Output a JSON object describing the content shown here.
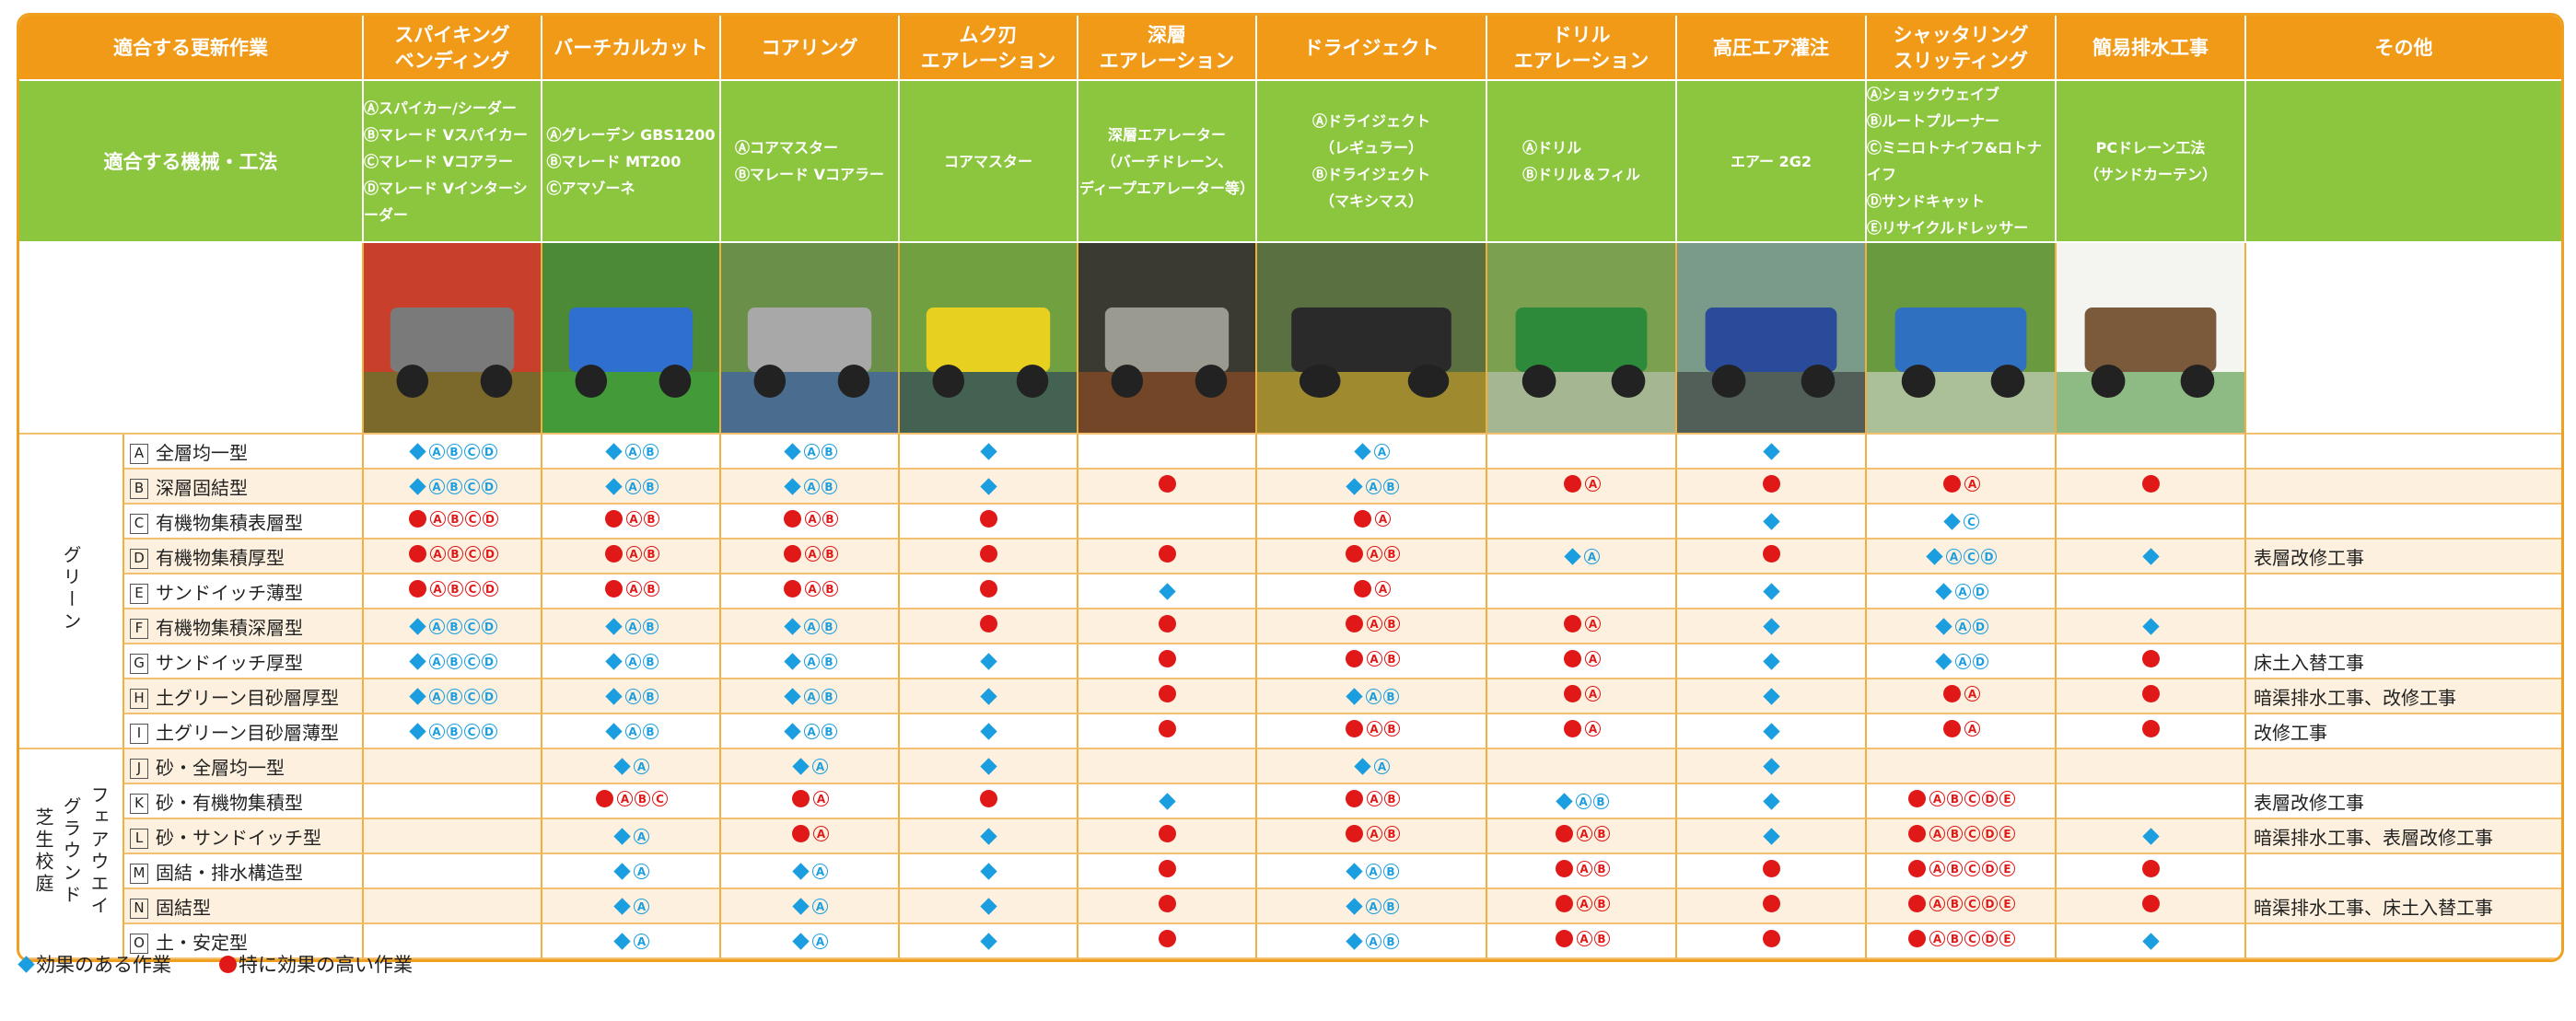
{
  "header": {
    "work_title": "適合する更新作業",
    "machine_title": "適合する機械・工法",
    "columns": [
      {
        "title": "スパイキング\nベンディング",
        "machines": [
          "Ⓐスパイカー/シーダー",
          "Ⓑマレード Vスパイカー",
          "Ⓒマレード Vコアラー",
          "Ⓓマレード Vインターシーダー"
        ]
      },
      {
        "title": "バーチカルカット",
        "machines": [
          "Ⓐグレーデン GBS1200",
          "Ⓑマレード MT200",
          "Ⓒアマゾーネ"
        ]
      },
      {
        "title": "コアリング",
        "machines": [
          "Ⓐコアマスター",
          "Ⓑマレード Vコアラー"
        ]
      },
      {
        "title": "ムク刃\nエアレーション",
        "machines": [
          "コアマスター"
        ]
      },
      {
        "title": "深層\nエアレーション",
        "machines": [
          "深層エアレーター",
          "（バーチドレーン、",
          "ディープエアレーター等）"
        ]
      },
      {
        "title": "ドライジェクト",
        "machines": [
          "Ⓐドライジェクト",
          "（レギュラー）",
          "Ⓑドライジェクト",
          "（マキシマス）"
        ]
      },
      {
        "title": "ドリル\nエアレーション",
        "machines": [
          "Ⓐドリル",
          "Ⓑドリル＆フィル"
        ]
      },
      {
        "title": "高圧エア灌注",
        "machines": [
          "エアー 2G2"
        ]
      },
      {
        "title": "シャッタリング\nスリッティング",
        "machines": [
          "Ⓐショックウェイブ",
          "Ⓑルートプルーナー",
          "Ⓒミニロトナイフ&ロトナイフ",
          "Ⓓサンドキャット",
          "Ⓔリサイクルドレッサー"
        ]
      },
      {
        "title": "簡易排水工事",
        "machines": [
          "PCドレーン工法",
          "（サンドカーテン）"
        ]
      },
      {
        "title": "その他",
        "machines": []
      }
    ]
  },
  "groups": [
    {
      "name": "グリーン",
      "rows": [
        {
          "code": "A",
          "label": "全層均一型",
          "cells": [
            "D:ABCD",
            "D:AB",
            "D:AB",
            "D:",
            "",
            "D:A",
            "",
            "D:",
            "",
            "",
            ""
          ]
        },
        {
          "code": "B",
          "label": "深層固結型",
          "cells": [
            "D:ABCD",
            "D:AB",
            "D:AB",
            "D:",
            "C:",
            "D:AB",
            "C:A",
            "C:",
            "C:A",
            "C:",
            ""
          ]
        },
        {
          "code": "C",
          "label": "有機物集積表層型",
          "cells": [
            "C:ABCD",
            "C:AB",
            "C:AB",
            "C:",
            "",
            "C:A",
            "",
            "D:",
            "D:C",
            "",
            ""
          ]
        },
        {
          "code": "D",
          "label": "有機物集積厚型",
          "cells": [
            "C:ABCD",
            "C:AB",
            "C:AB",
            "C:",
            "C:",
            "C:AB",
            "D:A",
            "C:",
            "D:ACD",
            "D:",
            "表層改修工事"
          ]
        },
        {
          "code": "E",
          "label": "サンドイッチ薄型",
          "cells": [
            "C:ABCD",
            "C:AB",
            "C:AB",
            "C:",
            "D:",
            "C:A",
            "",
            "D:",
            "D:AD",
            "",
            ""
          ]
        },
        {
          "code": "F",
          "label": "有機物集積深層型",
          "cells": [
            "D:ABCD",
            "D:AB",
            "D:AB",
            "C:",
            "C:",
            "C:AB",
            "C:A",
            "D:",
            "D:AD",
            "D:",
            ""
          ]
        },
        {
          "code": "G",
          "label": "サンドイッチ厚型",
          "cells": [
            "D:ABCD",
            "D:AB",
            "D:AB",
            "D:",
            "C:",
            "C:AB",
            "C:A",
            "D:",
            "D:AD",
            "C:",
            "床土入替工事"
          ]
        },
        {
          "code": "H",
          "label": "土グリーン目砂層厚型",
          "cells": [
            "D:ABCD",
            "D:AB",
            "D:AB",
            "D:",
            "C:",
            "D:AB",
            "C:A",
            "D:",
            "C:A",
            "C:",
            "暗渠排水工事、改修工事"
          ]
        },
        {
          "code": "I",
          "label": "土グリーン目砂層薄型",
          "cells": [
            "D:ABCD",
            "D:AB",
            "D:AB",
            "D:",
            "C:",
            "C:AB",
            "C:A",
            "D:",
            "C:A",
            "C:",
            "改修工事"
          ]
        }
      ]
    },
    {
      "name": "フェアウエイ\nグラウンド\n芝生校庭",
      "rows": [
        {
          "code": "J",
          "label": "砂・全層均一型",
          "cells": [
            "",
            "D:A",
            "D:A",
            "D:",
            "",
            "D:A",
            "",
            "D:",
            "",
            "",
            ""
          ]
        },
        {
          "code": "K",
          "label": "砂・有機物集積型",
          "cells": [
            "",
            "C:ABC",
            "C:A",
            "C:",
            "D:",
            "C:AB",
            "D:AB",
            "D:",
            "C:ABCDE",
            "",
            "表層改修工事"
          ]
        },
        {
          "code": "L",
          "label": "砂・サンドイッチ型",
          "cells": [
            "",
            "D:A",
            "C:A",
            "D:",
            "C:",
            "C:AB",
            "C:AB",
            "D:",
            "C:ABCDE",
            "D:",
            "暗渠排水工事、表層改修工事"
          ]
        },
        {
          "code": "M",
          "label": "固結・排水構造型",
          "cells": [
            "",
            "D:A",
            "D:A",
            "D:",
            "C:",
            "D:AB",
            "C:AB",
            "C:",
            "C:ABCDE",
            "C:",
            ""
          ]
        },
        {
          "code": "N",
          "label": "固結型",
          "cells": [
            "",
            "D:A",
            "D:A",
            "D:",
            "C:",
            "D:AB",
            "C:AB",
            "C:",
            "C:ABCDE",
            "C:",
            "暗渠排水工事、床土入替工事"
          ]
        },
        {
          "code": "O",
          "label": "土・安定型",
          "cells": [
            "",
            "D:A",
            "D:A",
            "D:",
            "C:",
            "D:AB",
            "C:AB",
            "C:",
            "C:ABCDE",
            "D:",
            ""
          ]
        }
      ]
    }
  ],
  "legend": {
    "diamond_label": "効果のある作業",
    "circle_label": "特に効果の高い作業"
  },
  "colors": {
    "header_orange": "#f09a18",
    "machine_green": "#8cc63f",
    "diamond_blue": "#1a9ee0",
    "circle_red": "#e01818",
    "stripe": "#fdf0de"
  }
}
